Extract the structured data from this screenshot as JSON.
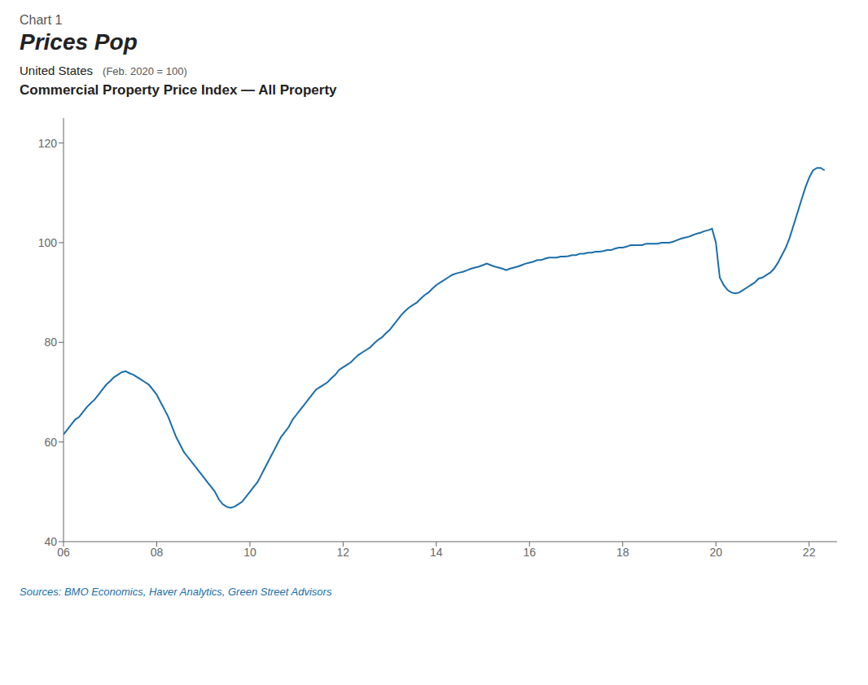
{
  "chart_data": {
    "type": "line",
    "header": "Chart 1",
    "title": "Prices Pop",
    "subtitle": "United States",
    "subtitle_note": "(Feb. 2020 = 100)",
    "chart_title": "Commercial Property Price Index — All Property",
    "source": "Sources: BMO Economics, Haver Analytics, Green Street Advisors",
    "color": "#1a6eab",
    "grid": false,
    "xlim": [
      2006,
      2022.6
    ],
    "ylim": [
      40,
      125
    ],
    "yticks": [
      40,
      60,
      80,
      100,
      120
    ],
    "xticks": [
      {
        "value": 2006,
        "label": "06"
      },
      {
        "value": 2008,
        "label": "08"
      },
      {
        "value": 2010,
        "label": "10"
      },
      {
        "value": 2012,
        "label": "12"
      },
      {
        "value": 2014,
        "label": "14"
      },
      {
        "value": 2016,
        "label": "16"
      },
      {
        "value": 2018,
        "label": "18"
      },
      {
        "value": 2020,
        "label": "20"
      },
      {
        "value": 2022,
        "label": "22"
      }
    ],
    "x": [
      2006.0,
      2006.083,
      2006.167,
      2006.25,
      2006.333,
      2006.417,
      2006.5,
      2006.583,
      2006.667,
      2006.75,
      2006.833,
      2006.917,
      2007.0,
      2007.083,
      2007.167,
      2007.25,
      2007.333,
      2007.417,
      2007.5,
      2007.583,
      2007.667,
      2007.75,
      2007.833,
      2007.917,
      2008.0,
      2008.083,
      2008.167,
      2008.25,
      2008.333,
      2008.417,
      2008.5,
      2008.583,
      2008.667,
      2008.75,
      2008.833,
      2008.917,
      2009.0,
      2009.083,
      2009.167,
      2009.25,
      2009.333,
      2009.417,
      2009.5,
      2009.583,
      2009.667,
      2009.75,
      2009.833,
      2009.917,
      2010.0,
      2010.083,
      2010.167,
      2010.25,
      2010.333,
      2010.417,
      2010.5,
      2010.583,
      2010.667,
      2010.75,
      2010.833,
      2010.917,
      2011.0,
      2011.083,
      2011.167,
      2011.25,
      2011.333,
      2011.417,
      2011.5,
      2011.583,
      2011.667,
      2011.75,
      2011.833,
      2011.917,
      2012.0,
      2012.083,
      2012.167,
      2012.25,
      2012.333,
      2012.417,
      2012.5,
      2012.583,
      2012.667,
      2012.75,
      2012.833,
      2012.917,
      2013.0,
      2013.083,
      2013.167,
      2013.25,
      2013.333,
      2013.417,
      2013.5,
      2013.583,
      2013.667,
      2013.75,
      2013.833,
      2013.917,
      2014.0,
      2014.083,
      2014.167,
      2014.25,
      2014.333,
      2014.417,
      2014.5,
      2014.583,
      2014.667,
      2014.75,
      2014.833,
      2014.917,
      2015.0,
      2015.083,
      2015.167,
      2015.25,
      2015.333,
      2015.417,
      2015.5,
      2015.583,
      2015.667,
      2015.75,
      2015.833,
      2015.917,
      2016.0,
      2016.083,
      2016.167,
      2016.25,
      2016.333,
      2016.417,
      2016.5,
      2016.583,
      2016.667,
      2016.75,
      2016.833,
      2016.917,
      2017.0,
      2017.083,
      2017.167,
      2017.25,
      2017.333,
      2017.417,
      2017.5,
      2017.583,
      2017.667,
      2017.75,
      2017.833,
      2017.917,
      2018.0,
      2018.083,
      2018.167,
      2018.25,
      2018.333,
      2018.417,
      2018.5,
      2018.583,
      2018.667,
      2018.75,
      2018.833,
      2018.917,
      2019.0,
      2019.083,
      2019.167,
      2019.25,
      2019.333,
      2019.417,
      2019.5,
      2019.583,
      2019.667,
      2019.75,
      2019.833,
      2019.917,
      2020.0,
      2020.083,
      2020.167,
      2020.25,
      2020.333,
      2020.417,
      2020.5,
      2020.583,
      2020.667,
      2020.75,
      2020.833,
      2020.917,
      2021.0,
      2021.083,
      2021.167,
      2021.25,
      2021.333,
      2021.417,
      2021.5,
      2021.583,
      2021.667,
      2021.75,
      2021.833,
      2021.917,
      2022.0,
      2022.083,
      2022.167,
      2022.25,
      2022.333
    ],
    "values": [
      61.5,
      62.5,
      63.5,
      64.5,
      65.0,
      66.0,
      67.0,
      67.8,
      68.5,
      69.5,
      70.5,
      71.5,
      72.2,
      73.0,
      73.5,
      74.0,
      74.2,
      73.8,
      73.5,
      73.0,
      72.5,
      72.0,
      71.5,
      70.5,
      69.5,
      68.0,
      66.5,
      65.0,
      63.0,
      61.0,
      59.5,
      58.0,
      57.0,
      56.0,
      55.0,
      54.0,
      53.0,
      52.0,
      51.0,
      50.0,
      48.5,
      47.5,
      47.0,
      46.8,
      47.0,
      47.5,
      48.0,
      49.0,
      50.0,
      51.0,
      52.0,
      53.5,
      55.0,
      56.5,
      58.0,
      59.5,
      61.0,
      62.0,
      63.0,
      64.5,
      65.5,
      66.5,
      67.5,
      68.5,
      69.5,
      70.5,
      71.0,
      71.5,
      72.0,
      72.8,
      73.5,
      74.5,
      75.0,
      75.5,
      76.0,
      76.8,
      77.5,
      78.0,
      78.5,
      79.0,
      79.8,
      80.5,
      81.0,
      81.8,
      82.5,
      83.5,
      84.5,
      85.5,
      86.3,
      87.0,
      87.5,
      88.0,
      88.8,
      89.5,
      90.0,
      90.8,
      91.5,
      92.0,
      92.5,
      93.0,
      93.5,
      93.8,
      94.0,
      94.2,
      94.5,
      94.8,
      95.0,
      95.2,
      95.5,
      95.8,
      95.5,
      95.2,
      95.0,
      94.8,
      94.5,
      94.8,
      95.0,
      95.2,
      95.5,
      95.8,
      96.0,
      96.2,
      96.5,
      96.5,
      96.8,
      97.0,
      97.0,
      97.0,
      97.2,
      97.2,
      97.3,
      97.5,
      97.5,
      97.8,
      97.8,
      98.0,
      98.0,
      98.2,
      98.2,
      98.3,
      98.5,
      98.5,
      98.8,
      99.0,
      99.0,
      99.2,
      99.5,
      99.5,
      99.5,
      99.5,
      99.8,
      99.8,
      99.8,
      99.8,
      100.0,
      100.0,
      100.0,
      100.2,
      100.5,
      100.8,
      101.0,
      101.2,
      101.5,
      101.8,
      102.0,
      102.3,
      102.5,
      102.8,
      100.0,
      93.0,
      91.5,
      90.5,
      90.0,
      89.8,
      90.0,
      90.5,
      91.0,
      91.5,
      92.0,
      92.8,
      93.0,
      93.5,
      94.0,
      94.8,
      96.0,
      97.5,
      99.0,
      101.0,
      103.5,
      106.0,
      108.5,
      111.0,
      113.0,
      114.5,
      115.0,
      115.0,
      114.5
    ]
  }
}
